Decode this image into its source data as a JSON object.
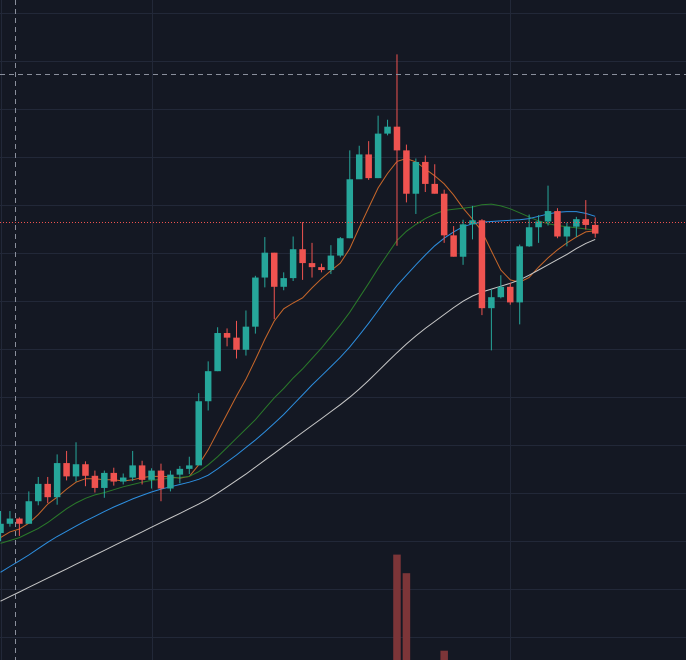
{
  "colors": {
    "background": "#141823",
    "grid": "#222838",
    "up": "#26a69a",
    "down": "#ef5350",
    "volume_down": "#7c3538",
    "crosshair": "#8a8f9c",
    "last_price_line": "#ef5350",
    "ma_fast": "#c8672a",
    "ma_medium": "#2a7a2a",
    "ma_slow": "#2d8fe0",
    "ma_slowest": "#c8c8c8"
  },
  "chart_data": {
    "type": "candlestick",
    "title": "",
    "xlabel": "",
    "ylabel": "",
    "ylim": [
      0,
      100
    ],
    "grid": true,
    "legend": "none",
    "candles": [
      [
        12.8,
        14.4,
        16.6,
        11.4
      ],
      [
        14.4,
        15.3,
        16.6,
        13.9
      ],
      [
        15.3,
        14.4,
        15.5,
        12.3
      ],
      [
        14.4,
        18.3,
        20.0,
        14.4
      ],
      [
        18.3,
        21.3,
        22.5,
        17.6
      ],
      [
        21.3,
        19.0,
        22.5,
        18.0
      ],
      [
        19.0,
        24.9,
        26.4,
        17.7
      ],
      [
        24.9,
        22.6,
        27.0,
        21.9
      ],
      [
        22.6,
        24.7,
        28.5,
        21.7
      ],
      [
        24.7,
        22.7,
        25.2,
        20.9
      ],
      [
        22.7,
        20.6,
        23.6,
        19.8
      ],
      [
        20.6,
        23.2,
        23.6,
        18.9
      ],
      [
        23.2,
        21.7,
        24.1,
        21.0
      ],
      [
        21.7,
        22.4,
        23.1,
        21.2
      ],
      [
        22.4,
        24.5,
        27.0,
        21.8
      ],
      [
        24.5,
        22.0,
        25.3,
        21.2
      ],
      [
        22.0,
        23.6,
        24.0,
        20.5
      ],
      [
        23.6,
        20.5,
        24.8,
        18.3
      ],
      [
        20.5,
        22.9,
        23.6,
        20.0
      ],
      [
        22.9,
        23.9,
        24.4,
        21.4
      ],
      [
        23.9,
        24.5,
        26.0,
        23.0
      ],
      [
        24.5,
        35.6,
        37.0,
        24.5
      ],
      [
        35.6,
        40.8,
        42.5,
        34.0
      ],
      [
        40.8,
        47.4,
        48.4,
        40.8
      ],
      [
        47.4,
        46.6,
        48.2,
        45.1
      ],
      [
        46.6,
        44.5,
        49.5,
        43.0
      ],
      [
        44.5,
        48.5,
        51.3,
        43.5
      ],
      [
        48.5,
        57.0,
        57.3,
        47.3
      ],
      [
        57.0,
        61.3,
        64.0,
        55.3
      ],
      [
        61.3,
        55.4,
        61.3,
        49.8
      ],
      [
        55.4,
        56.9,
        57.9,
        54.8
      ],
      [
        56.9,
        61.9,
        64.1,
        56.4
      ],
      [
        61.9,
        59.5,
        66.6,
        56.6
      ],
      [
        59.5,
        58.8,
        63.0,
        57.0
      ],
      [
        58.8,
        58.3,
        59.4,
        57.9
      ],
      [
        58.3,
        60.8,
        62.6,
        57.6
      ],
      [
        60.8,
        63.8,
        64.0,
        60.5
      ],
      [
        63.8,
        74.0,
        79.0,
        63.8
      ],
      [
        74.0,
        78.3,
        79.8,
        77.3
      ],
      [
        78.3,
        74.2,
        80.6,
        73.9
      ],
      [
        74.2,
        81.9,
        85.0,
        74.2
      ],
      [
        81.9,
        83.1,
        84.3,
        81.6
      ],
      [
        83.1,
        79.0,
        95.6,
        62.5
      ],
      [
        79.0,
        71.5,
        80.0,
        70.0
      ],
      [
        71.5,
        77.0,
        77.6,
        68.0
      ],
      [
        77.0,
        73.2,
        78.1,
        71.8
      ],
      [
        73.2,
        71.5,
        76.6,
        71.5
      ],
      [
        71.5,
        64.3,
        72.2,
        63.0
      ],
      [
        64.3,
        60.6,
        65.9,
        60.6
      ],
      [
        60.6,
        66.2,
        67.0,
        59.2
      ],
      [
        66.2,
        66.9,
        69.4,
        63.6
      ],
      [
        66.9,
        51.7,
        67.1,
        50.5
      ],
      [
        51.7,
        53.6,
        55.0,
        44.4
      ],
      [
        53.6,
        55.4,
        57.4,
        53.4
      ],
      [
        55.4,
        52.7,
        56.1,
        52.3
      ],
      [
        52.7,
        62.4,
        62.7,
        48.9
      ],
      [
        62.4,
        65.7,
        67.9,
        62.3
      ],
      [
        65.7,
        66.7,
        67.8,
        63.0
      ],
      [
        66.7,
        68.5,
        72.9,
        66.0
      ],
      [
        68.5,
        64.1,
        69.0,
        63.8
      ],
      [
        64.1,
        65.8,
        66.5,
        62.4
      ],
      [
        65.8,
        67.1,
        67.5,
        64.0
      ],
      [
        67.1,
        66.1,
        70.4,
        65.3
      ],
      [
        66.1,
        64.6,
        67.4,
        63.9
      ]
    ],
    "moving_averages": [
      {
        "color_key": "ma_fast",
        "values": [
          12.0,
          13.0,
          13.5,
          14.5,
          16.0,
          17.8,
          19.0,
          20.4,
          21.6,
          22.2,
          22.2,
          22.0,
          22.0,
          21.8,
          22.0,
          22.4,
          22.6,
          22.6,
          22.5,
          22.3,
          22.6,
          24.6,
          27.2,
          30.3,
          33.4,
          36.5,
          39.4,
          42.8,
          46.3,
          49.5,
          51.6,
          52.6,
          53.5,
          55.2,
          56.8,
          58.2,
          59.5,
          62.0,
          65.6,
          69.1,
          72.5,
          75.0,
          77.1,
          77.6,
          77.0,
          75.8,
          74.6,
          73.2,
          71.3,
          69.0,
          67.1,
          65.0,
          61.6,
          58.3,
          56.6,
          56.2,
          57.0,
          58.8,
          60.4,
          61.8,
          63.0,
          64.0,
          64.9,
          65.1
        ]
      },
      {
        "color_key": "ma_medium",
        "values": [
          11.0,
          11.5,
          12.0,
          12.8,
          13.6,
          14.6,
          15.8,
          17.0,
          18.0,
          18.8,
          19.4,
          19.8,
          20.3,
          20.8,
          21.2,
          21.6,
          21.9,
          22.1,
          22.3,
          22.4,
          22.6,
          23.4,
          24.6,
          26.0,
          27.6,
          29.2,
          30.8,
          32.4,
          34.3,
          36.2,
          37.8,
          39.6,
          41.2,
          43.0,
          44.8,
          46.8,
          48.8,
          51.0,
          53.5,
          56.0,
          58.6,
          61.0,
          63.4,
          65.0,
          66.2,
          67.2,
          68.0,
          68.6,
          68.8,
          69.0,
          69.2,
          69.6,
          69.7,
          69.4,
          68.9,
          68.2,
          67.5,
          66.8,
          66.3,
          66.0,
          65.8,
          65.6,
          65.4,
          65.2
        ]
      },
      {
        "color_key": "ma_slow",
        "values": [
          6.0,
          7.0,
          8.0,
          9.0,
          10.1,
          11.2,
          12.2,
          13.1,
          14.0,
          14.9,
          15.7,
          16.5,
          17.3,
          18.0,
          18.7,
          19.3,
          19.9,
          20.4,
          20.8,
          21.2,
          21.6,
          22.1,
          22.8,
          23.9,
          25.1,
          26.3,
          27.6,
          28.9,
          30.3,
          31.8,
          33.3,
          35.0,
          36.7,
          38.4,
          40.0,
          41.6,
          43.2,
          45.0,
          47.0,
          49.1,
          51.3,
          53.5,
          55.6,
          57.4,
          59.2,
          60.9,
          62.5,
          63.8,
          64.9,
          65.8,
          66.3,
          66.6,
          66.7,
          66.8,
          66.9,
          67.0,
          67.2,
          67.6,
          68.0,
          68.3,
          68.4,
          68.4,
          68.1,
          67.6
        ]
      },
      {
        "color_key": "ma_slowest",
        "values": [
          1.0,
          1.8,
          2.6,
          3.4,
          4.2,
          5.0,
          5.8,
          6.6,
          7.4,
          8.2,
          9.0,
          9.8,
          10.6,
          11.4,
          12.2,
          13.0,
          13.8,
          14.6,
          15.4,
          16.2,
          17.0,
          17.8,
          18.7,
          19.7,
          20.8,
          21.9,
          23.0,
          24.2,
          25.4,
          26.6,
          27.8,
          29.0,
          30.2,
          31.4,
          32.6,
          33.8,
          35.0,
          36.3,
          37.7,
          39.2,
          40.8,
          42.4,
          44.0,
          45.5,
          46.9,
          48.2,
          49.4,
          50.6,
          51.8,
          52.9,
          53.8,
          54.5,
          55.0,
          55.5,
          56.0,
          56.6,
          57.4,
          58.3,
          59.2,
          60.1,
          61.0,
          62.0,
          62.9,
          63.6
        ]
      }
    ],
    "volume_visible": [
      {
        "index": 42,
        "value": 3.4,
        "direction": "down"
      },
      {
        "index": 43,
        "value": 2.8,
        "direction": "down"
      },
      {
        "index": 47,
        "value": 0.3,
        "direction": "down"
      }
    ],
    "crosshair": {
      "index": 1.5,
      "price": 92.3
    },
    "last_price": 66.6
  }
}
